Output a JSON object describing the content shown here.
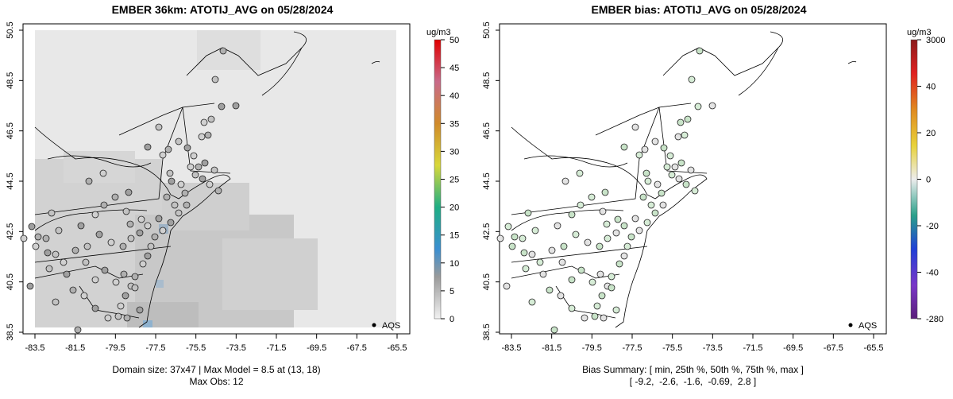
{
  "left": {
    "title": "EMBER 36km: ATOTIJ_AVG on 05/28/2024",
    "unit": "ug/m3",
    "colorbar_ticks": [
      "50",
      "45",
      "40",
      "35",
      "30",
      "25",
      "20",
      "15",
      "10",
      "5",
      "0"
    ],
    "legend_label": "AQS",
    "caption_line1": "Domain size: 37x47 | Max Model = 8.5 at (13, 18)",
    "caption_line2": "Max Obs: 12"
  },
  "right": {
    "title": "EMBER bias: ATOTIJ_AVG on 05/28/2024",
    "unit": "ug/m3",
    "colorbar_ticks": [
      "3000",
      "40",
      "20",
      "0",
      "-20",
      "-40",
      "-280"
    ],
    "legend_label": "AQS",
    "caption_line1": "Bias Summary: [ min, 25th %, 50th %, 75th %, max ]",
    "caption_line2": "[ -9.2,  -2.6,  -1.6,  -0.69,  2.8 ]"
  },
  "axes": {
    "lat_ticks": [
      "50.5",
      "48.5",
      "46.5",
      "44.5",
      "42.5",
      "40.5",
      "38.5"
    ],
    "lon_ticks": [
      "-83.5",
      "-81.5",
      "-79.5",
      "-77.5",
      "-75.5",
      "-73.5",
      "-71.5",
      "-69.5",
      "-67.5",
      "-65.5"
    ]
  },
  "colors": {
    "model_gray_light": "#e6e6e6",
    "model_gray_dark": "#a8a8a8",
    "bias_green": "#c8e3c8",
    "site_gray": "#bdbdbd"
  }
}
